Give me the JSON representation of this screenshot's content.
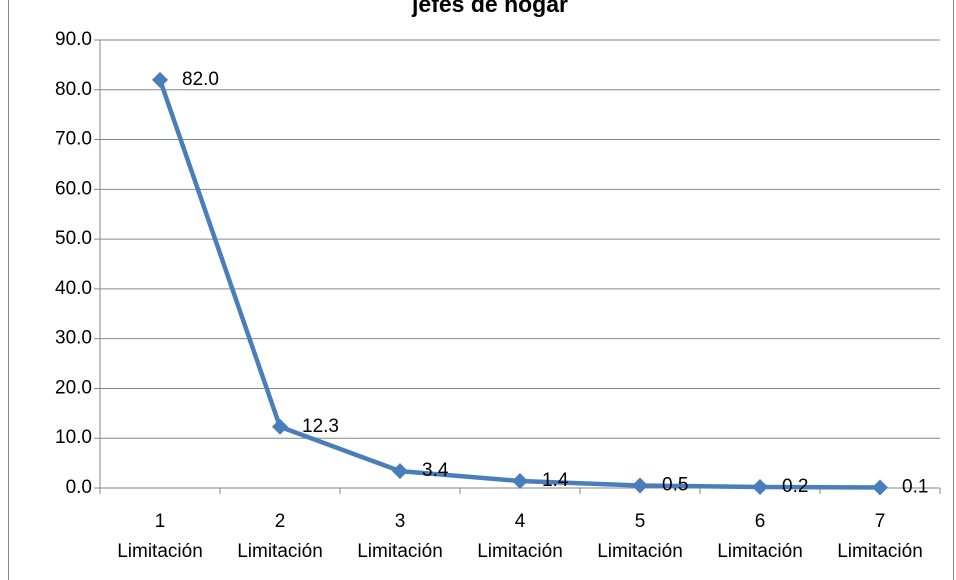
{
  "chart_data": {
    "type": "line",
    "title": "jefes de hogar",
    "categories": [
      "1\nLimitación",
      "2\nLimitación",
      "3\nLimitación",
      "4\nLimitación",
      "5\nLimitación",
      "6\nLimitación",
      "7\nLimitación"
    ],
    "series": [
      {
        "color": "#4a7ebb",
        "values": [
          82.0,
          12.3,
          3.4,
          1.4,
          0.5,
          0.2,
          0.1
        ],
        "value_labels": [
          "82.0",
          "12.3",
          "3.4",
          "1.4",
          "0.5",
          "0.2",
          "0.1"
        ]
      }
    ],
    "ylim": [
      0,
      90
    ],
    "yticks": [
      {
        "value": 0,
        "label": "0.0"
      },
      {
        "value": 10,
        "label": "10.0"
      },
      {
        "value": 20,
        "label": "20.0"
      },
      {
        "value": 30,
        "label": "30.0"
      },
      {
        "value": 40,
        "label": "40.0"
      },
      {
        "value": 50,
        "label": "50.0"
      },
      {
        "value": 60,
        "label": "60.0"
      },
      {
        "value": 70,
        "label": "70.0"
      },
      {
        "value": 80,
        "label": "80.0"
      },
      {
        "value": 90,
        "label": "90.0"
      }
    ],
    "grid": true
  }
}
